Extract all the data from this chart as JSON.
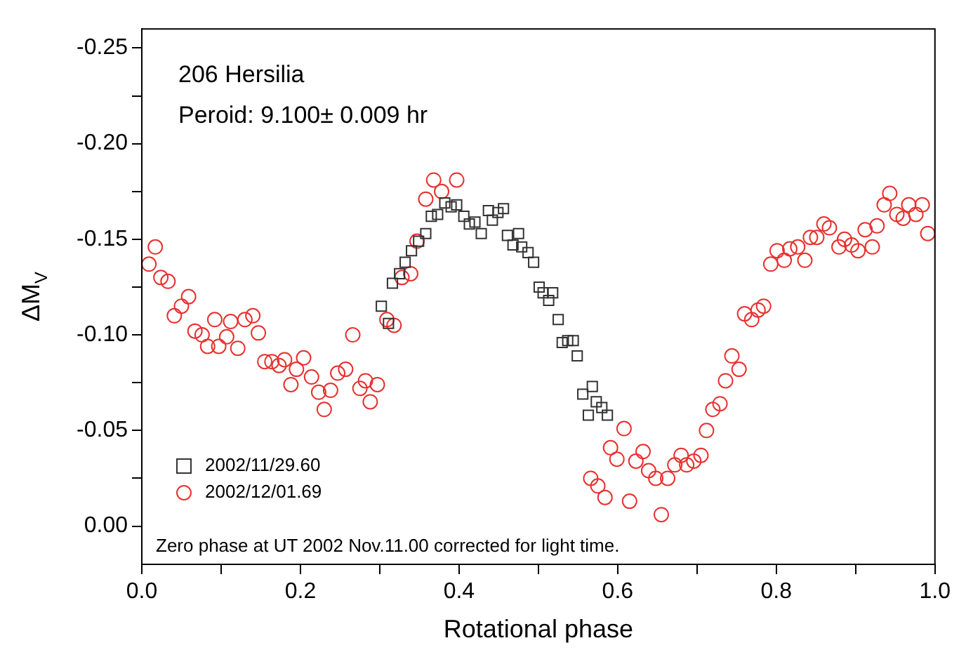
{
  "chart_data": {
    "type": "scatter",
    "xlabel": "Rotational phase",
    "ylabel": "ΔM$_{V}$",
    "annotations": [
      "206 Hersilia",
      "Peroid: 9.100± 0.009 hr",
      "Zero phase at UT 2002 Nov.11.00 corrected for light time."
    ],
    "xlim": [
      0,
      1
    ],
    "xticks": [
      {
        "value": 0,
        "label": "0.0"
      },
      {
        "value": 0.1,
        "label": null
      },
      {
        "value": 0.2,
        "label": "0.2"
      },
      {
        "value": 0.3,
        "label": null
      },
      {
        "value": 0.4,
        "label": "0.4"
      },
      {
        "value": 0.5,
        "label": null
      },
      {
        "value": 0.6,
        "label": "0.6"
      },
      {
        "value": 0.7,
        "label": null
      },
      {
        "value": 0.8,
        "label": "0.8"
      },
      {
        "value": 0.9,
        "label": null
      },
      {
        "value": 1,
        "label": "1.0"
      }
    ],
    "ylim": [
      0.02,
      -0.26
    ],
    "yticks": [
      {
        "value": 0,
        "label": "0.00"
      },
      {
        "value": -0.025,
        "label": null
      },
      {
        "value": -0.05,
        "label": "-0.05"
      },
      {
        "value": -0.075,
        "label": null
      },
      {
        "value": -0.1,
        "label": "-0.10"
      },
      {
        "value": -0.125,
        "label": null
      },
      {
        "value": -0.15,
        "label": "-0.15"
      },
      {
        "value": -0.175,
        "label": null
      },
      {
        "value": -0.2,
        "label": "-0.20"
      },
      {
        "value": -0.225,
        "label": null
      },
      {
        "value": -0.25,
        "label": "-0.25"
      }
    ],
    "grid": false,
    "legend": "bottom left",
    "series": [
      {
        "name": "2002/11/29.60",
        "color": "#333333",
        "marker": "square",
        "x": [
          0.302,
          0.311,
          0.316,
          0.325,
          0.332,
          0.34,
          0.349,
          0.358,
          0.365,
          0.373,
          0.382,
          0.39,
          0.397,
          0.406,
          0.413,
          0.42,
          0.428,
          0.437,
          0.442,
          0.449,
          0.456,
          0.461,
          0.468,
          0.475,
          0.479,
          0.487,
          0.494,
          0.501,
          0.506,
          0.513,
          0.518,
          0.525,
          0.53,
          0.537,
          0.544,
          0.549,
          0.556,
          0.563,
          0.568,
          0.573,
          0.58,
          0.587
        ],
        "values": [
          -0.115,
          -0.106,
          -0.127,
          -0.132,
          -0.138,
          -0.144,
          -0.149,
          -0.153,
          -0.162,
          -0.163,
          -0.169,
          -0.167,
          -0.168,
          -0.162,
          -0.158,
          -0.159,
          -0.153,
          -0.165,
          -0.16,
          -0.164,
          -0.166,
          -0.152,
          -0.147,
          -0.153,
          -0.146,
          -0.143,
          -0.138,
          -0.125,
          -0.122,
          -0.118,
          -0.122,
          -0.108,
          -0.096,
          -0.097,
          -0.097,
          -0.089,
          -0.069,
          -0.058,
          -0.073,
          -0.065,
          -0.062,
          -0.058
        ]
      },
      {
        "name": "2002/12/01.69",
        "color": "#e8312f",
        "marker": "circle",
        "x": [
          0.009,
          0.017,
          0.024,
          0.033,
          0.041,
          0.05,
          0.059,
          0.067,
          0.076,
          0.083,
          0.092,
          0.097,
          0.107,
          0.112,
          0.121,
          0.13,
          0.14,
          0.147,
          0.155,
          0.164,
          0.173,
          0.18,
          0.188,
          0.195,
          0.204,
          0.214,
          0.223,
          0.23,
          0.238,
          0.247,
          0.257,
          0.266,
          0.275,
          0.282,
          0.288,
          0.297,
          0.309,
          0.318,
          0.328,
          0.339,
          0.347,
          0.358,
          0.368,
          0.378,
          0.397,
          0.566,
          0.575,
          0.584,
          0.591,
          0.599,
          0.608,
          0.615,
          0.623,
          0.632,
          0.639,
          0.648,
          0.655,
          0.663,
          0.672,
          0.68,
          0.687,
          0.696,
          0.705,
          0.712,
          0.72,
          0.729,
          0.736,
          0.744,
          0.753,
          0.76,
          0.769,
          0.777,
          0.784,
          0.793,
          0.801,
          0.81,
          0.817,
          0.827,
          0.836,
          0.843,
          0.851,
          0.86,
          0.867,
          0.879,
          0.886,
          0.895,
          0.903,
          0.912,
          0.921,
          0.927,
          0.936,
          0.943,
          0.952,
          0.96,
          0.967,
          0.976,
          0.984,
          0.991
        ],
        "values": [
          -0.137,
          -0.146,
          -0.13,
          -0.128,
          -0.11,
          -0.115,
          -0.12,
          -0.102,
          -0.1,
          -0.094,
          -0.108,
          -0.094,
          -0.099,
          -0.107,
          -0.093,
          -0.108,
          -0.11,
          -0.101,
          -0.086,
          -0.086,
          -0.084,
          -0.087,
          -0.074,
          -0.082,
          -0.088,
          -0.078,
          -0.07,
          -0.061,
          -0.071,
          -0.08,
          -0.082,
          -0.1,
          -0.072,
          -0.076,
          -0.065,
          -0.074,
          -0.108,
          -0.105,
          -0.13,
          -0.132,
          -0.149,
          -0.171,
          -0.181,
          -0.175,
          -0.181,
          -0.025,
          -0.021,
          -0.015,
          -0.041,
          -0.035,
          -0.051,
          -0.013,
          -0.034,
          -0.039,
          -0.029,
          -0.025,
          -0.006,
          -0.025,
          -0.032,
          -0.037,
          -0.032,
          -0.034,
          -0.037,
          -0.05,
          -0.061,
          -0.064,
          -0.076,
          -0.089,
          -0.082,
          -0.111,
          -0.108,
          -0.113,
          -0.115,
          -0.137,
          -0.144,
          -0.139,
          -0.145,
          -0.146,
          -0.139,
          -0.151,
          -0.151,
          -0.158,
          -0.156,
          -0.146,
          -0.15,
          -0.147,
          -0.144,
          -0.155,
          -0.146,
          -0.157,
          -0.168,
          -0.174,
          -0.163,
          -0.161,
          -0.168,
          -0.163,
          -0.168,
          -0.153
        ]
      }
    ]
  }
}
